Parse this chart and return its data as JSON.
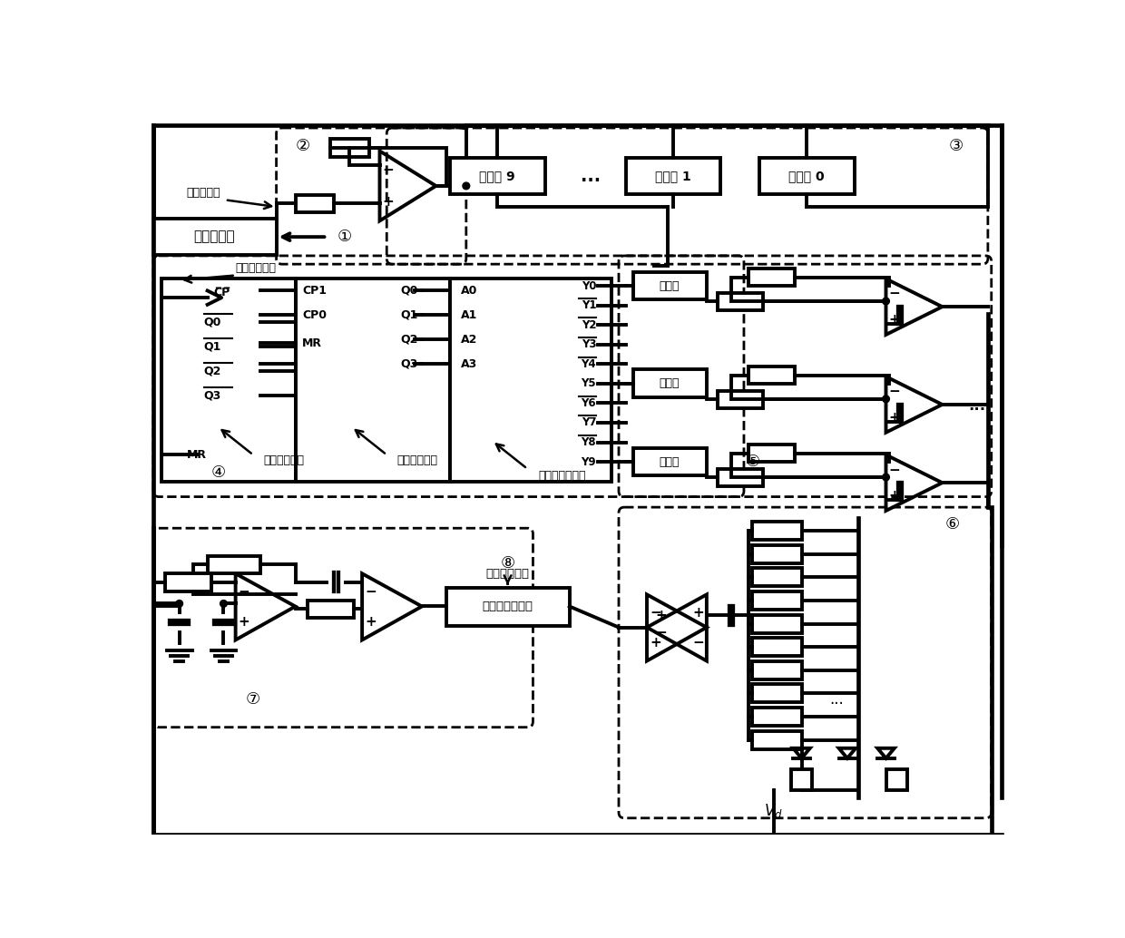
{
  "bg": "#ffffff",
  "lc": "#000000",
  "lw": 2.8,
  "dlw": 2.0,
  "fw": 12.4,
  "fh": 10.34,
  "dpi": 100,
  "labels": {
    "zhengxianbo": "正弦波信号",
    "jili": "激励信号源",
    "tongbu": "同步时钟信号",
    "sensor9": "传感器 9",
    "sensor1": "传感器 1",
    "sensor0": "传感器 0",
    "fuxiang": "反相器",
    "shijin": "信号采集与提取",
    "caiyang": "采样时钟信号",
    "erjin": "二进制计数器",
    "shijin2": "十进制计数器",
    "ershi": "二十进制译码器",
    "Vd": "$V_d$",
    "c1": "①",
    "c2": "②",
    "c3": "③",
    "c4": "④",
    "c5": "⑤",
    "c6": "⑥",
    "c7": "⑦",
    "c8": "⑧"
  }
}
